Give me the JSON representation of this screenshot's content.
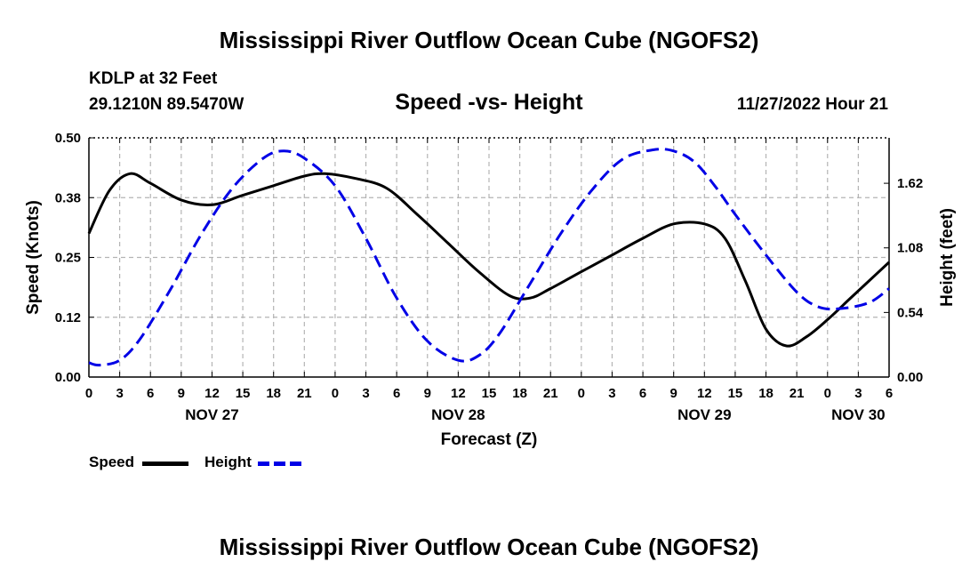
{
  "header": {
    "title": "Mississippi River Outflow Ocean Cube (NGOFS2)",
    "station": "KDLP at 32 Feet",
    "coords": "29.1210N  89.5470W",
    "subtitle": "Speed -vs- Height",
    "forecast_time": "11/27/2022 Hour 21"
  },
  "footer": {
    "title": "Mississippi River Outflow Ocean Cube (NGOFS2)"
  },
  "legend": {
    "speed_label": "Speed",
    "height_label": "Height"
  },
  "colors": {
    "speed": "#000000",
    "height": "#0000e6",
    "grid": "#b4b4b4"
  },
  "chart_data": {
    "type": "line",
    "title": "Speed -vs- Height",
    "xlabel": "Forecast (Z)",
    "ylabel_left": "Speed (Knots)",
    "ylabel_right": "Height (feet)",
    "x_unit": "hours from 00Z Nov 27",
    "xlim": [
      0,
      78
    ],
    "x_ticks": [
      0,
      3,
      6,
      9,
      12,
      15,
      18,
      21,
      24,
      27,
      30,
      33,
      36,
      39,
      42,
      45,
      48,
      51,
      54,
      57,
      60,
      63,
      66,
      69,
      72,
      75,
      78
    ],
    "x_tick_labels": [
      "0",
      "3",
      "6",
      "9",
      "12",
      "15",
      "18",
      "21",
      "0",
      "3",
      "6",
      "9",
      "12",
      "15",
      "18",
      "21",
      "0",
      "3",
      "6",
      "9",
      "12",
      "15",
      "18",
      "21",
      "0",
      "3",
      "6"
    ],
    "date_labels": [
      {
        "x": 12,
        "label": "NOV 27"
      },
      {
        "x": 36,
        "label": "NOV 28"
      },
      {
        "x": 60,
        "label": "NOV 29"
      },
      {
        "x": 75,
        "label": "NOV 30"
      }
    ],
    "ylim_left": [
      0,
      0.5
    ],
    "yticks_left": [
      0,
      0.125,
      0.25,
      0.375,
      0.5
    ],
    "yticks_left_labels": [
      "0.00",
      "0.12",
      "0.25",
      "0.38",
      "0.50"
    ],
    "ylim_right": [
      0,
      2.0
    ],
    "yticks_right": [
      0,
      0.54,
      1.08,
      1.62
    ],
    "yticks_right_labels": [
      "0.00",
      "0.54",
      "1.08",
      "1.62"
    ],
    "grid": true,
    "series": [
      {
        "name": "Speed",
        "axis": "left",
        "style": "solid",
        "x": [
          0,
          2,
          4,
          6,
          9,
          12,
          15,
          18,
          21,
          23,
          26,
          29,
          32,
          35,
          38,
          41,
          43,
          45,
          48,
          51,
          54,
          57,
          60,
          62,
          64,
          66,
          68,
          70,
          72,
          74,
          76,
          78
        ],
        "values": [
          0.3,
          0.39,
          0.425,
          0.405,
          0.37,
          0.36,
          0.38,
          0.4,
          0.42,
          0.425,
          0.415,
          0.395,
          0.34,
          0.28,
          0.22,
          0.17,
          0.165,
          0.185,
          0.22,
          0.255,
          0.29,
          0.32,
          0.32,
          0.29,
          0.2,
          0.1,
          0.065,
          0.085,
          0.12,
          0.16,
          0.2,
          0.24
        ]
      },
      {
        "name": "Height",
        "axis": "right",
        "style": "dashed",
        "x": [
          0,
          1,
          3,
          5,
          8,
          11,
          14,
          17,
          19,
          21,
          24,
          27,
          30,
          33,
          36,
          38,
          40,
          43,
          46,
          49,
          52,
          55,
          57,
          59,
          61,
          63,
          66,
          69,
          71,
          73,
          76,
          78
        ],
        "values": [
          0.12,
          0.1,
          0.14,
          0.32,
          0.74,
          1.2,
          1.58,
          1.83,
          1.89,
          1.83,
          1.6,
          1.16,
          0.66,
          0.3,
          0.14,
          0.18,
          0.36,
          0.78,
          1.2,
          1.56,
          1.82,
          1.9,
          1.89,
          1.8,
          1.6,
          1.36,
          1.02,
          0.71,
          0.59,
          0.57,
          0.62,
          0.74
        ]
      }
    ]
  }
}
